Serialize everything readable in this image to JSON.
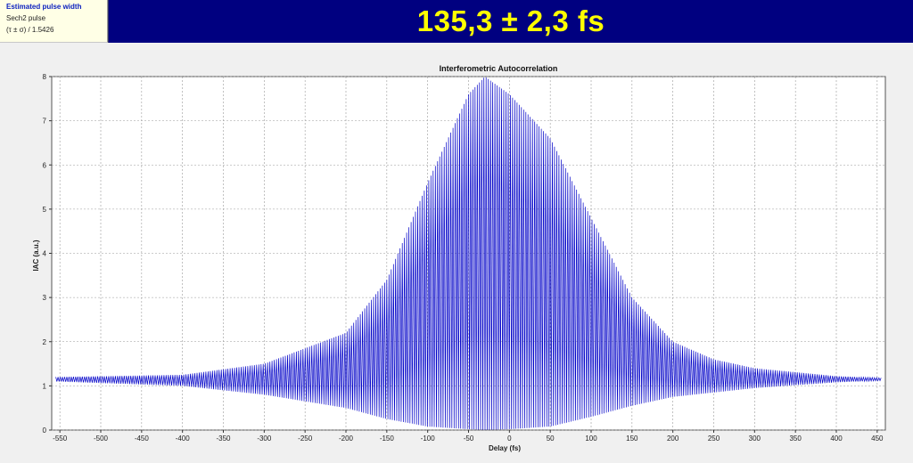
{
  "info": {
    "title": "Estimated pulse width",
    "pulse_shape": "Sech2 pulse",
    "formula": "(τ ± σ) / 1.5426"
  },
  "result": {
    "value_text": "135,3 ± 2,3 fs"
  },
  "colors": {
    "trace": "#0000c8",
    "header_bg": "#000080",
    "value_text": "#ffff00",
    "info_title": "#0a1fbf"
  },
  "chart_data": {
    "type": "line",
    "title": "Interferometric Autocorrelation",
    "xlabel": "Delay (fs)",
    "ylabel": "IAC (a.u.)",
    "xlim": [
      -560,
      460
    ],
    "ylim": [
      0,
      8
    ],
    "xticks": [
      -550,
      -500,
      -450,
      -400,
      -350,
      -300,
      -250,
      -200,
      -150,
      -100,
      -50,
      0,
      50,
      100,
      150,
      200,
      250,
      300,
      350,
      400,
      450
    ],
    "yticks": [
      0,
      1,
      2,
      3,
      4,
      5,
      6,
      7,
      8
    ],
    "grid": true,
    "series": [
      {
        "x_range": [
          -555,
          455
        ],
        "baseline": 1.15,
        "center": -30,
        "peak": 8,
        "fringe_period_fs": 2.7,
        "pulse_width_fs": 135.3,
        "envelope_upper": [
          [
            -555,
            1.2
          ],
          [
            -400,
            1.25
          ],
          [
            -300,
            1.5
          ],
          [
            -200,
            2.2
          ],
          [
            -150,
            3.4
          ],
          [
            -100,
            5.6
          ],
          [
            -50,
            7.6
          ],
          [
            -30,
            8.0
          ],
          [
            0,
            7.6
          ],
          [
            50,
            6.6
          ],
          [
            100,
            4.8
          ],
          [
            150,
            3.0
          ],
          [
            200,
            2.0
          ],
          [
            250,
            1.6
          ],
          [
            300,
            1.4
          ],
          [
            400,
            1.22
          ],
          [
            455,
            1.18
          ]
        ],
        "envelope_lower": [
          [
            -555,
            1.1
          ],
          [
            -400,
            1.0
          ],
          [
            -300,
            0.8
          ],
          [
            -200,
            0.5
          ],
          [
            -150,
            0.25
          ],
          [
            -100,
            0.08
          ],
          [
            -50,
            0.02
          ],
          [
            -30,
            0.0
          ],
          [
            0,
            0.02
          ],
          [
            50,
            0.08
          ],
          [
            100,
            0.3
          ],
          [
            150,
            0.55
          ],
          [
            200,
            0.75
          ],
          [
            250,
            0.85
          ],
          [
            300,
            0.95
          ],
          [
            400,
            1.08
          ],
          [
            455,
            1.12
          ]
        ]
      }
    ]
  }
}
